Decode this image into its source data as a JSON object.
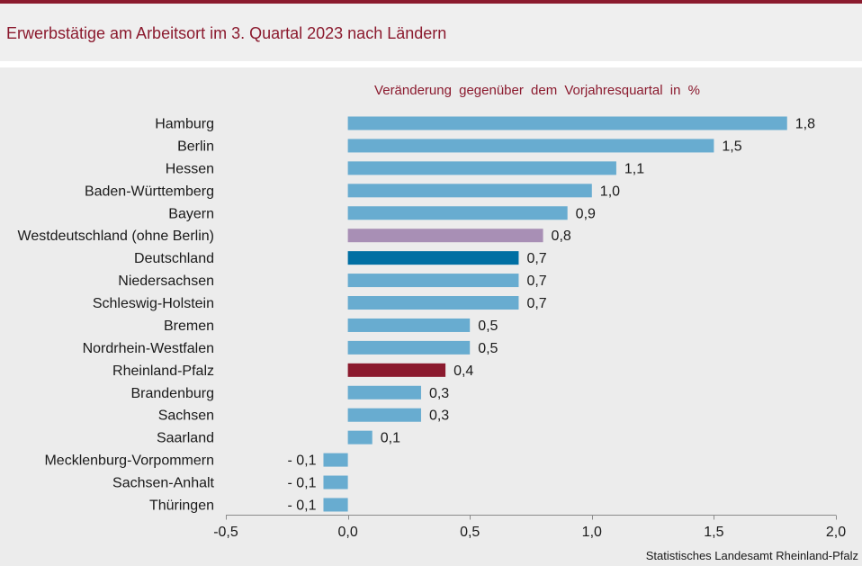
{
  "header": {
    "title": "Erwerbstätige am Arbeitsort im 3. Quartal 2023 nach Ländern"
  },
  "theme": {
    "accent": "#8b1a2e",
    "background": "#ececec",
    "axis": "#8c8c8c"
  },
  "chart_data": {
    "type": "bar",
    "orientation": "horizontal",
    "title": "Veränderung gegenüber dem Vorjahresquartal in %",
    "xlabel": "",
    "ylabel": "",
    "categories": [
      "Hamburg",
      "Berlin",
      "Hessen",
      "Baden-Württemberg",
      "Bayern",
      "Westdeutschland (ohne Berlin)",
      "Deutschland",
      "Niedersachsen",
      "Schleswig-Holstein",
      "Bremen",
      "Nordrhein-Westfalen",
      "Rheinland-Pfalz",
      "Brandenburg",
      "Sachsen",
      "Saarland",
      "Mecklenburg-Vorpommern",
      "Sachsen-Anhalt",
      "Thüringen"
    ],
    "values": [
      1.8,
      1.5,
      1.1,
      1.0,
      0.9,
      0.8,
      0.7,
      0.7,
      0.7,
      0.5,
      0.5,
      0.4,
      0.3,
      0.3,
      0.1,
      -0.1,
      -0.1,
      -0.1
    ],
    "value_labels": [
      "1,8",
      "1,5",
      "1,1",
      "1,0",
      "0,9",
      "0,8",
      "0,7",
      "0,7",
      "0,7",
      "0,5",
      "0,5",
      "0,4",
      "0,3",
      "0,3",
      "0,1",
      "- 0,1",
      "- 0,1",
      "- 0,1"
    ],
    "bar_colors": [
      "#68acd0",
      "#68acd0",
      "#68acd0",
      "#68acd0",
      "#68acd0",
      "#a88fb5",
      "#006fa3",
      "#68acd0",
      "#68acd0",
      "#68acd0",
      "#68acd0",
      "#8b1a2e",
      "#68acd0",
      "#68acd0",
      "#68acd0",
      "#68acd0",
      "#68acd0",
      "#68acd0"
    ],
    "xlim": [
      -0.5,
      2.0
    ],
    "xticks": [
      -0.5,
      0.0,
      0.5,
      1.0,
      1.5,
      2.0
    ],
    "xtick_labels": [
      "-0,5",
      "0,0",
      "0,5",
      "1,0",
      "1,5",
      "2,0"
    ],
    "grid": false,
    "legend": "none"
  },
  "footer": {
    "source": "Statistisches Landesamt Rheinland-Pfalz"
  }
}
